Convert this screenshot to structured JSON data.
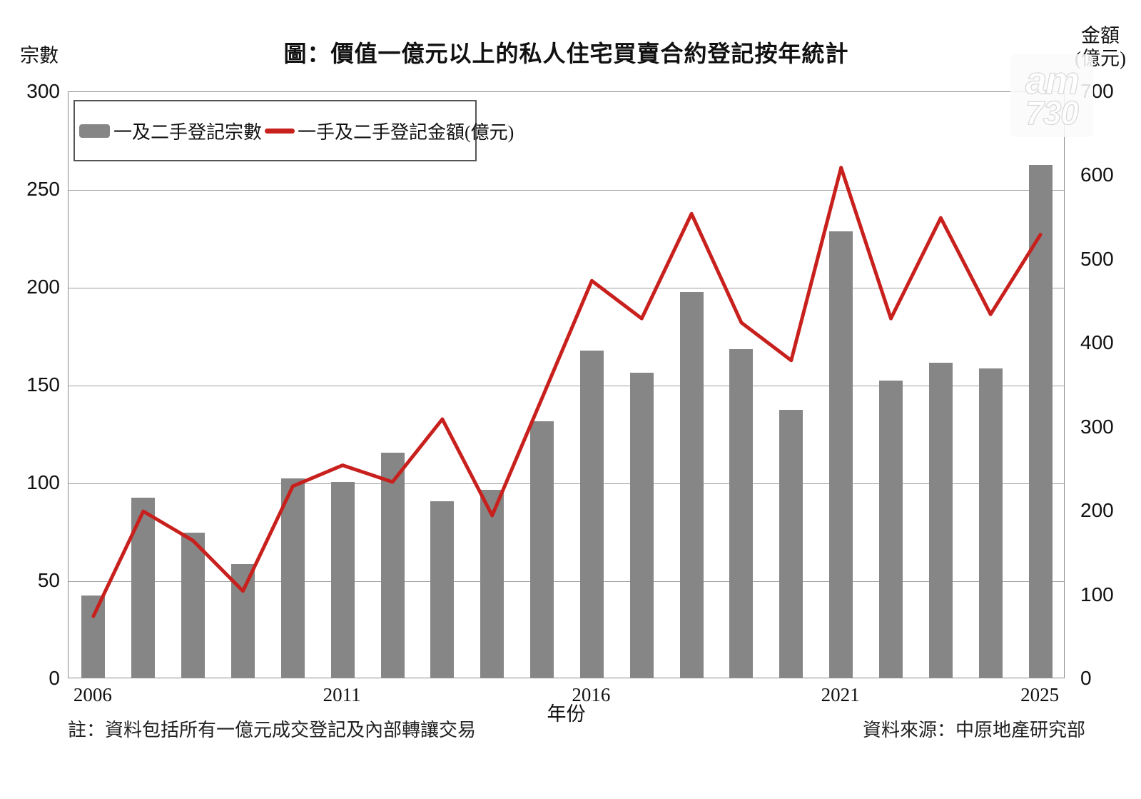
{
  "title": "圖：價值一億元以上的私人住宅買賣合約登記按年統計",
  "watermark": {
    "line1": "am",
    "line2": "730"
  },
  "axes": {
    "left_label": "宗數",
    "right_label": [
      "金額",
      "(億元)"
    ],
    "x_label": "年份",
    "left_ticks": [
      0,
      50,
      100,
      150,
      200,
      250,
      300
    ],
    "right_ticks": [
      0,
      100,
      200,
      300,
      400,
      500,
      600,
      700
    ],
    "x_ticks": [
      {
        "label": "2006",
        "year_index": 0
      },
      {
        "label": "2011",
        "year_index": 5
      },
      {
        "label": "2016",
        "year_index": 10
      },
      {
        "label": "2021",
        "year_index": 15
      },
      {
        "label": "2025",
        "year_index": 19
      }
    ]
  },
  "legend": {
    "bar_label": "一及二手登記宗數",
    "line_label": "一手及二手登記金額(億元)"
  },
  "footer": {
    "note": "註：資料包括所有一億元成交登記及內部轉讓交易",
    "source": "資料來源：中原地產研究部"
  },
  "colors": {
    "bar": "#868686",
    "line": "#c8201d",
    "grid": "#9e9e9e",
    "border": "#8c8c8c"
  },
  "chart_data": {
    "type": "bar+line",
    "title": "圖：價值一億元以上的私人住宅買賣合約登記按年統計",
    "x_axis_label": "年份",
    "categories": [
      "2006",
      "2007",
      "2008",
      "2009",
      "2010",
      "2011",
      "2012",
      "2013",
      "2014",
      "2015",
      "2016",
      "2017",
      "2018",
      "2019",
      "2020",
      "2021",
      "2022",
      "2023",
      "2024",
      "2025"
    ],
    "shown_x_tick_labels": [
      "2006",
      "2011",
      "2016",
      "2021",
      "2025"
    ],
    "series": [
      {
        "name": "一及二手登記宗數",
        "type": "bar",
        "axis": "left",
        "color": "#868686",
        "values": [
          42,
          92,
          74,
          58,
          102,
          100,
          115,
          90,
          96,
          131,
          167,
          156,
          197,
          168,
          137,
          228,
          152,
          161,
          158,
          262
        ]
      },
      {
        "name": "一手及二手登記金額(億元)",
        "type": "line",
        "axis": "right",
        "color": "#c8201d",
        "values": [
          75,
          200,
          165,
          105,
          230,
          255,
          235,
          310,
          195,
          335,
          475,
          430,
          555,
          425,
          380,
          610,
          430,
          550,
          435,
          530
        ]
      }
    ],
    "left_axis": {
      "label": "宗數",
      "min": 0,
      "max": 300,
      "step": 50
    },
    "right_axis": {
      "label": "金額(億元)",
      "min": 0,
      "max": 700,
      "step": 100
    },
    "grid": "horizontal",
    "legend_position": "top-left-inside"
  }
}
